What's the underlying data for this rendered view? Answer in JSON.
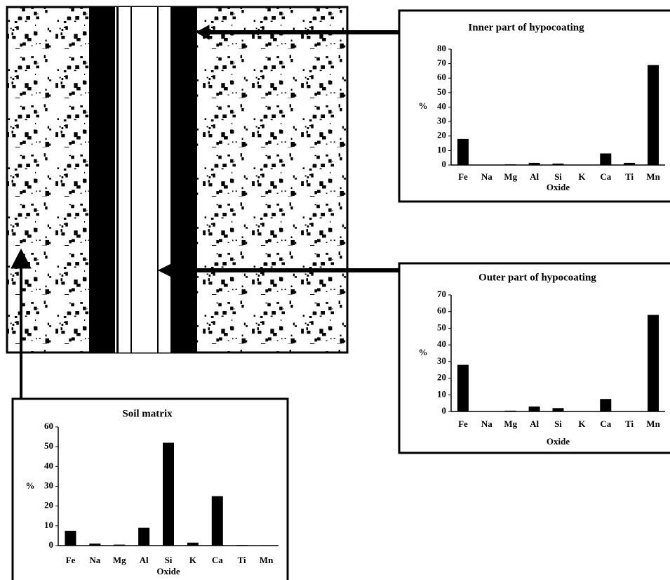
{
  "chart_data": [
    {
      "type": "bar",
      "title": "Inner part of hypocoating",
      "x_label": "Oxide",
      "y_label": "%",
      "categories": [
        "Fe",
        "Na",
        "Mg",
        "Al",
        "Si",
        "K",
        "Ca",
        "Ti",
        "Mn"
      ],
      "values": [
        18,
        0,
        0.5,
        1.5,
        1,
        0,
        8,
        1.5,
        69
      ],
      "color": "#000000",
      "ylim": [
        0,
        80
      ],
      "yticks": [
        0,
        10,
        20,
        30,
        40,
        50,
        60,
        70,
        80
      ]
    },
    {
      "type": "bar",
      "title": "Outer part of hypocoating",
      "x_label": "Oxide",
      "y_label": "%",
      "categories": [
        "Fe",
        "Na",
        "Mg",
        "Al",
        "Si",
        "K",
        "Ca",
        "Ti",
        "Mn"
      ],
      "values": [
        28,
        0.2,
        0.5,
        3,
        2,
        0.2,
        7.5,
        0,
        58
      ],
      "color": "#000000",
      "ylim": [
        0,
        70
      ],
      "yticks": [
        0,
        10,
        20,
        30,
        40,
        50,
        60,
        70
      ]
    },
    {
      "type": "bar",
      "title": "Soil matrix",
      "x_label": "Oxide",
      "y_label": "%",
      "categories": [
        "Fe",
        "Na",
        "Mg",
        "Al",
        "Si",
        "K",
        "Ca",
        "Ti",
        "Mn"
      ],
      "values": [
        7.5,
        1,
        0.5,
        9,
        52,
        1.5,
        25,
        0.3,
        0.2
      ],
      "color": "#000000",
      "ylim": [
        0,
        60
      ],
      "yticks": [
        0,
        10,
        20,
        30,
        40,
        50,
        60
      ]
    }
  ]
}
